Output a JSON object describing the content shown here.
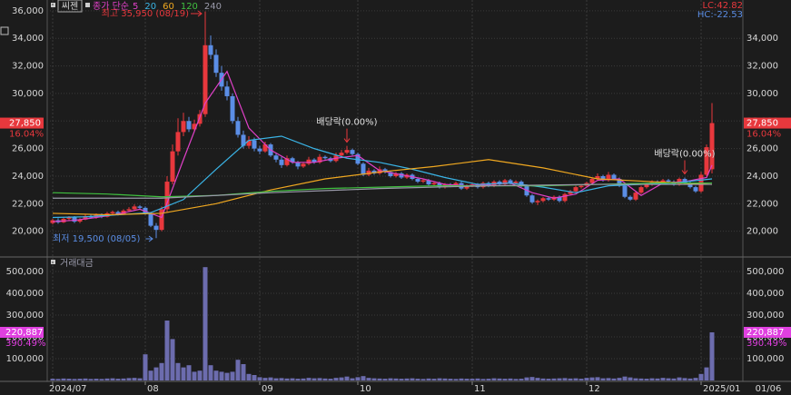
{
  "chart_data": [
    {
      "type": "candlestick",
      "title": "씨젠",
      "subtitle": "종가 단순",
      "open": [
        20600,
        20800,
        20650,
        20900,
        21000,
        20700,
        20850,
        21100,
        21000,
        21200,
        21050,
        21300,
        21400,
        21250,
        21500,
        21600,
        21800,
        21700,
        21300,
        20400,
        20100,
        21600,
        23600,
        25800,
        27200,
        28000,
        27400,
        27800,
        28500,
        33500,
        32800,
        31500,
        30500,
        29800,
        28000,
        27000,
        26200,
        26600,
        26000,
        25800,
        26300,
        25500,
        25200,
        24800,
        25300,
        25000,
        24700,
        24900,
        25200,
        25000,
        25400,
        25300,
        25100,
        25500,
        25700,
        25900,
        25600,
        24900,
        24100,
        24400,
        24200,
        24500,
        24300,
        24000,
        24200,
        23900,
        24100,
        23800,
        23600,
        23700,
        23400,
        23500,
        23200,
        23400,
        23300,
        23500,
        23100,
        23300,
        23400,
        23200,
        23500,
        23300,
        23600,
        23400,
        23700,
        23500,
        23600,
        23300,
        22600,
        22100,
        22200,
        22400,
        22300,
        22500,
        22200,
        22700,
        22900,
        23200,
        23300,
        23500,
        23800,
        24000,
        23700,
        24100,
        23800,
        23300,
        22500,
        22300,
        22800,
        23200,
        23400,
        23600,
        23500,
        23700,
        23600,
        23400,
        23800,
        23500,
        23200,
        22900,
        24100,
        24500
      ],
      "high": [
        20900,
        20950,
        21000,
        21100,
        21100,
        20950,
        21200,
        21250,
        21300,
        21300,
        21400,
        21500,
        21500,
        21600,
        21750,
        21950,
        21900,
        21800,
        21400,
        20600,
        21800,
        24000,
        26300,
        28200,
        28600,
        28300,
        28100,
        28800,
        35950,
        34200,
        33200,
        32000,
        30900,
        30000,
        28300,
        27300,
        26900,
        26800,
        26200,
        26500,
        26400,
        25700,
        25400,
        25500,
        25400,
        25100,
        25000,
        25400,
        25300,
        25600,
        25500,
        25400,
        25700,
        25900,
        26200,
        26000,
        25700,
        25000,
        24600,
        24500,
        24700,
        24600,
        24400,
        24300,
        24300,
        24200,
        24200,
        23900,
        23800,
        23800,
        23600,
        23600,
        23500,
        23500,
        23600,
        23600,
        23400,
        23500,
        23500,
        23600,
        23600,
        23700,
        23700,
        23800,
        23800,
        23700,
        23700,
        23400,
        22700,
        22300,
        22500,
        22500,
        22600,
        22600,
        22800,
        23000,
        23300,
        23400,
        23600,
        23900,
        24200,
        24100,
        24300,
        24200,
        23900,
        23400,
        22600,
        22900,
        23300,
        23500,
        23700,
        23700,
        23800,
        23800,
        23700,
        23900,
        23900,
        23600,
        23300,
        24300,
        26300,
        29300
      ],
      "low": [
        20500,
        20550,
        20600,
        20800,
        20600,
        20600,
        20800,
        20900,
        20900,
        20950,
        21000,
        21200,
        21150,
        21200,
        21400,
        21500,
        21600,
        21200,
        20300,
        19500,
        20000,
        21400,
        23400,
        25500,
        26900,
        27200,
        27200,
        27600,
        28300,
        32500,
        31200,
        30200,
        29500,
        27800,
        26800,
        26000,
        26000,
        25800,
        25600,
        25700,
        25400,
        25000,
        24600,
        24700,
        24900,
        24500,
        24600,
        24800,
        24900,
        24900,
        25200,
        25000,
        25000,
        25400,
        25600,
        25500,
        24800,
        24000,
        24000,
        24100,
        24100,
        24200,
        23900,
        23900,
        23800,
        23800,
        23700,
        23500,
        23500,
        23300,
        23300,
        23100,
        23100,
        23200,
        23200,
        23000,
        23000,
        23200,
        23100,
        23100,
        23200,
        23200,
        23300,
        23300,
        23400,
        23400,
        23200,
        22500,
        22000,
        21900,
        22100,
        22200,
        22200,
        22100,
        22100,
        22600,
        22800,
        23100,
        23200,
        23400,
        23700,
        23600,
        23600,
        23700,
        23200,
        22400,
        22200,
        22200,
        22700,
        23100,
        23300,
        23400,
        23400,
        23500,
        23300,
        23300,
        23400,
        23100,
        22800,
        22800,
        24000,
        24200
      ],
      "close": [
        20800,
        20650,
        20900,
        21000,
        20700,
        20850,
        21100,
        21000,
        21200,
        21050,
        21300,
        21400,
        21250,
        21500,
        21600,
        21800,
        21700,
        21300,
        20400,
        20100,
        21600,
        23600,
        25800,
        27200,
        28000,
        27400,
        27800,
        28500,
        33500,
        32800,
        31500,
        30500,
        29800,
        28000,
        27000,
        26200,
        26600,
        26000,
        25800,
        26300,
        25500,
        25200,
        24800,
        25300,
        25000,
        24700,
        24900,
        25200,
        25000,
        25400,
        25300,
        25100,
        25500,
        25700,
        25900,
        25600,
        24900,
        24100,
        24400,
        24200,
        24500,
        24300,
        24000,
        24200,
        23900,
        24100,
        23800,
        23600,
        23700,
        23400,
        23500,
        23200,
        23400,
        23300,
        23500,
        23100,
        23300,
        23400,
        23200,
        23500,
        23300,
        23600,
        23400,
        23700,
        23500,
        23600,
        23300,
        22600,
        22100,
        22200,
        22400,
        22300,
        22500,
        22200,
        22700,
        22900,
        23200,
        23300,
        23500,
        23800,
        24000,
        23700,
        24100,
        23800,
        23300,
        22500,
        22300,
        22800,
        23200,
        23400,
        23600,
        23500,
        23700,
        23600,
        23400,
        23800,
        23500,
        23200,
        22900,
        24100,
        26100,
        27850
      ],
      "up_color": "#e8383d",
      "down_color": "#5b8ee6",
      "series": [
        {
          "name": "5",
          "color": "#e040c8",
          "x": [
            0,
            4,
            8,
            12,
            16,
            20,
            24,
            28,
            32,
            36,
            40,
            44,
            48,
            52,
            56,
            60,
            64,
            68,
            72,
            76,
            80,
            84,
            88,
            92,
            96,
            100,
            104,
            108,
            112,
            116,
            120,
            121
          ],
          "values": [
            20700,
            20800,
            21000,
            21250,
            21600,
            21000,
            25200,
            29300,
            31600,
            27500,
            25900,
            25000,
            25000,
            25300,
            25500,
            24400,
            24100,
            23800,
            23400,
            23300,
            23400,
            23500,
            22800,
            22400,
            22700,
            23700,
            23800,
            22600,
            23500,
            23600,
            23900,
            24800
          ]
        },
        {
          "name": "20",
          "color": "#3ab4e6",
          "x": [
            0,
            6,
            12,
            18,
            24,
            30,
            36,
            42,
            48,
            54,
            60,
            66,
            72,
            78,
            84,
            90,
            96,
            102,
            108,
            114,
            121
          ],
          "values": [
            21000,
            21050,
            21200,
            21350,
            22300,
            24500,
            26600,
            26900,
            26000,
            25300,
            25000,
            24500,
            23900,
            23400,
            23500,
            23200,
            22800,
            23300,
            23400,
            23500,
            23800
          ]
        },
        {
          "name": "60",
          "color": "#f0a820",
          "x": [
            0,
            10,
            20,
            30,
            40,
            50,
            60,
            70,
            80,
            90,
            100,
            110,
            121
          ],
          "values": [
            21300,
            21200,
            21300,
            22000,
            23000,
            23800,
            24300,
            24700,
            25200,
            24600,
            23800,
            23600,
            23400
          ]
        },
        {
          "name": "120",
          "color": "#40c040",
          "x": [
            0,
            10,
            20,
            30,
            40,
            50,
            60,
            70,
            80,
            90,
            100,
            110,
            121
          ],
          "values": [
            22800,
            22700,
            22500,
            22600,
            22900,
            23100,
            23200,
            23300,
            23300,
            23300,
            23400,
            23500,
            23500
          ]
        },
        {
          "name": "240",
          "color": "#9a9aaa",
          "x": [
            0,
            20,
            40,
            60,
            80,
            100,
            121
          ],
          "values": [
            22400,
            22400,
            22800,
            23100,
            23300,
            23400,
            23400
          ]
        }
      ],
      "ylim": [
        18200,
        36650
      ],
      "yticks": [
        {
          "value": 20000,
          "label": "20,000"
        },
        {
          "value": 22000,
          "label": "22,000"
        },
        {
          "value": 24000,
          "label": "24,000"
        },
        {
          "value": 26000,
          "label": "26,000"
        },
        {
          "value": 28000,
          "label": "28,000"
        },
        {
          "value": 30000,
          "label": "30,000"
        },
        {
          "value": 32000,
          "label": "32,000"
        },
        {
          "value": 34000,
          "label": "34,000"
        },
        {
          "value": 36000,
          "label": "36,000"
        }
      ],
      "xticks": [
        {
          "value": 0,
          "label": "2024/07"
        },
        {
          "value": 17,
          "label": "08"
        },
        {
          "value": 38,
          "label": "09"
        },
        {
          "value": 56,
          "label": "10"
        },
        {
          "value": 77,
          "label": "11"
        },
        {
          "value": 98,
          "label": "12"
        },
        {
          "value": 119,
          "label": "2025/01"
        }
      ],
      "grid": true,
      "last_label": "27,850",
      "change_label": "16.04%",
      "high_label": "최고 35,950 (08/19)",
      "low_label": "최저 19,500 (08/05)",
      "dividend_labels": [
        "배당락(0.00%)",
        "배당락(0.00%)"
      ],
      "lc_label": "LC:42.82",
      "hc_label": "HC:-22.53",
      "last_date": "01/06"
    },
    {
      "type": "bar",
      "title": "거래대금",
      "color": "#6c6cae",
      "values": [
        8000,
        7000,
        9000,
        8000,
        7000,
        8000,
        9000,
        7000,
        8000,
        7000,
        9000,
        10000,
        8000,
        9000,
        11000,
        12000,
        10000,
        120000,
        45000,
        60000,
        80000,
        275000,
        190000,
        80000,
        60000,
        70000,
        40000,
        45000,
        520000,
        70000,
        45000,
        40000,
        35000,
        40000,
        95000,
        75000,
        30000,
        25000,
        15000,
        12000,
        14000,
        10000,
        11000,
        9000,
        10000,
        8000,
        9000,
        12000,
        10000,
        11000,
        9000,
        8000,
        12000,
        14000,
        18000,
        10000,
        15000,
        20000,
        12000,
        10000,
        9000,
        8000,
        10000,
        9000,
        8000,
        9000,
        10000,
        8000,
        7000,
        9000,
        8000,
        10000,
        9000,
        8000,
        7000,
        9000,
        8000,
        8000,
        9000,
        7000,
        8000,
        10000,
        9000,
        8000,
        9000,
        7000,
        8000,
        14000,
        16000,
        12000,
        9000,
        8000,
        9000,
        10000,
        11000,
        9000,
        10000,
        8000,
        12000,
        14000,
        15000,
        10000,
        11000,
        9000,
        12000,
        18000,
        14000,
        10000,
        9000,
        8000,
        10000,
        9000,
        12000,
        10000,
        9000,
        14000,
        11000,
        9000,
        12000,
        30000,
        60000,
        220887
      ],
      "ylim": [
        0,
        562500
      ],
      "yticks": [
        {
          "value": 100000,
          "label": "100,000"
        },
        {
          "value": 200000,
          "label": "200,000"
        },
        {
          "value": 300000,
          "label": "300,000"
        },
        {
          "value": 400000,
          "label": "400,000"
        },
        {
          "value": 500000,
          "label": "500,000"
        }
      ],
      "grid": true,
      "last_label": "220,887",
      "change_label": "390.49%"
    }
  ]
}
